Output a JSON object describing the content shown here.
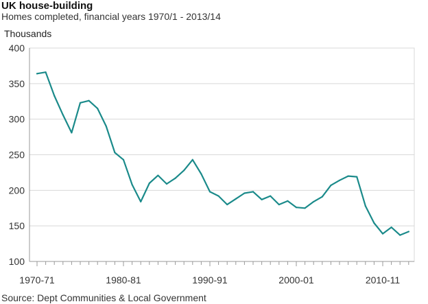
{
  "chart_data": {
    "type": "line",
    "title": "UK house-building",
    "subtitle": "Homes completed, financial years 1970/1 - 2013/14",
    "ylabel": "Thousands",
    "xlabel": "",
    "source": "Source: Dept Communities & Local Government",
    "ylim": [
      100,
      400
    ],
    "yticks": [
      100,
      150,
      200,
      250,
      300,
      350,
      400
    ],
    "xtick_labels": [
      "1970-71",
      "1980-81",
      "1990-91",
      "2000-01",
      "2010-11"
    ],
    "grid": true,
    "line_color": "#1a8a8a",
    "series": [
      {
        "x": [
          "1970-71",
          "1971-72",
          "1972-73",
          "1973-74",
          "1974-75",
          "1975-76",
          "1976-77",
          "1977-78",
          "1978-79",
          "1979-80",
          "1980-81",
          "1981-82",
          "1982-83",
          "1983-84",
          "1984-85",
          "1985-86",
          "1986-87",
          "1987-88",
          "1988-89",
          "1989-90",
          "1990-91",
          "1991-92",
          "1992-93",
          "1993-94",
          "1994-95",
          "1995-96",
          "1996-97",
          "1997-98",
          "1998-99",
          "1999-00",
          "2000-01",
          "2001-02",
          "2002-03",
          "2003-04",
          "2004-05",
          "2005-06",
          "2006-07",
          "2007-08",
          "2008-09",
          "2009-10",
          "2010-11",
          "2011-12",
          "2012-13",
          "2013-14"
        ],
        "values": [
          364,
          366,
          333,
          306,
          281,
          323,
          326,
          315,
          290,
          253,
          243,
          208,
          184,
          210,
          221,
          209,
          217,
          228,
          243,
          223,
          198,
          192,
          180,
          188,
          196,
          198,
          187,
          192,
          180,
          185,
          176,
          175,
          184,
          191,
          207,
          214,
          220,
          219,
          178,
          154,
          139,
          148,
          137,
          142
        ]
      }
    ]
  }
}
